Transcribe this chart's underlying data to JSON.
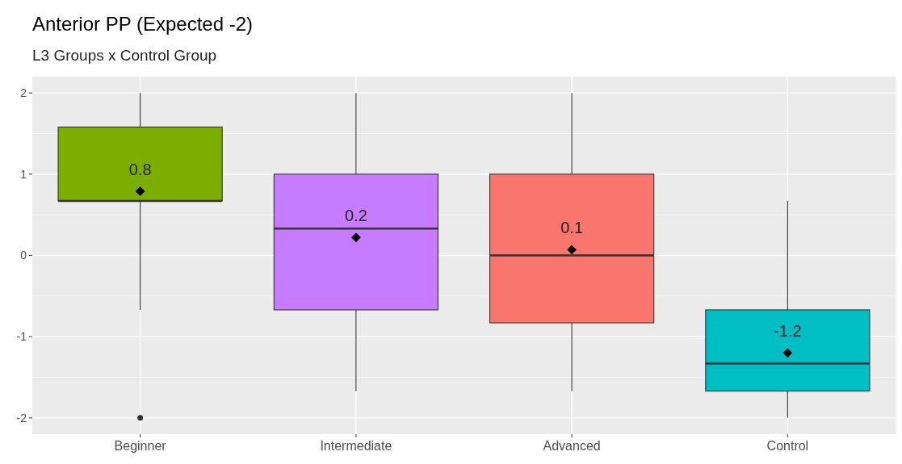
{
  "chart_data": {
    "type": "box",
    "title": "Anterior PP (Expected -2)",
    "subtitle": "L3 Groups x Control Group",
    "categories": [
      "Beginner",
      "Intermediate",
      "Advanced",
      "Control"
    ],
    "colors": [
      "#7cae00",
      "#c77cff",
      "#f8766d",
      "#00bfc4"
    ],
    "boxes": [
      {
        "low": -0.67,
        "q1": 0.67,
        "median": 0.67,
        "q3": 1.58,
        "high": 2,
        "mean": 0.79,
        "outliers": [
          -2
        ]
      },
      {
        "low": -1.67,
        "q1": -0.67,
        "median": 0.33,
        "q3": 1,
        "high": 2,
        "mean": 0.22
      },
      {
        "low": -1.67,
        "q1": -0.83,
        "median": 0,
        "q3": 1,
        "high": 2,
        "mean": 0.07
      },
      {
        "low": -2,
        "q1": -1.67,
        "median": -1.33,
        "q3": -0.67,
        "high": 0.67,
        "mean": -1.2
      }
    ],
    "value_labels": [
      "0.8",
      "0.2",
      "0.1",
      "-1.2"
    ],
    "ylim": [
      -2.2,
      2.2
    ],
    "yticks": [
      -2,
      -1,
      0,
      1,
      2
    ],
    "grid": true,
    "marker": "diamond"
  }
}
